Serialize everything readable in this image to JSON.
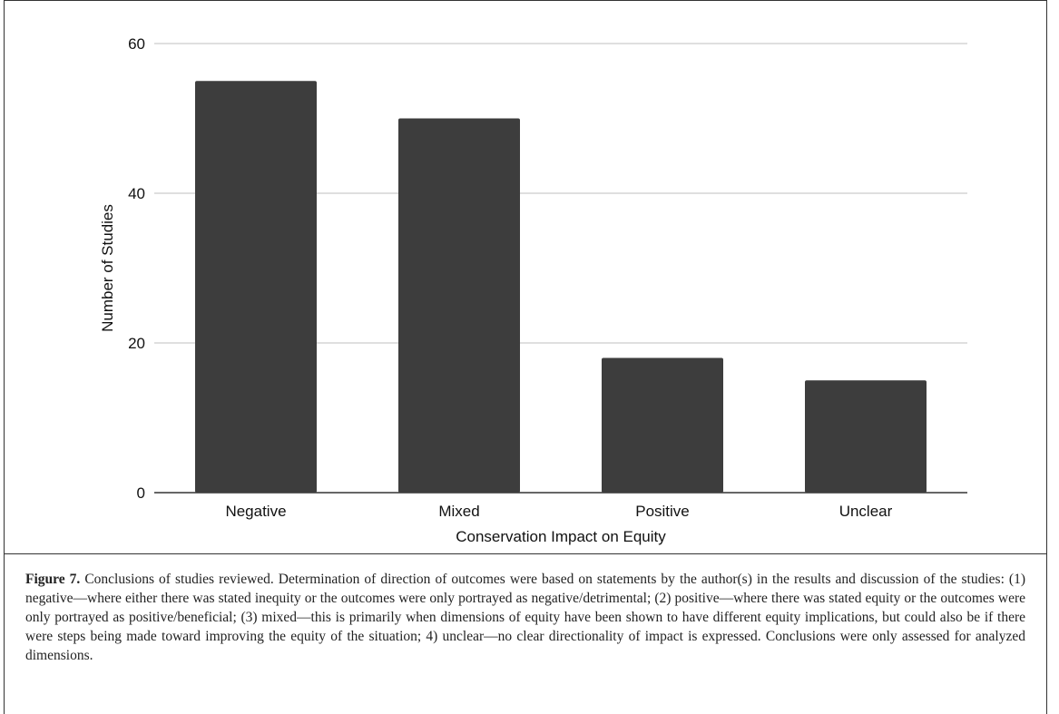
{
  "chart_data": {
    "type": "bar",
    "categories": [
      "Negative",
      "Mixed",
      "Positive",
      "Unclear"
    ],
    "values": [
      55,
      50,
      18,
      15
    ],
    "xlabel": "Conservation Impact on Equity",
    "ylabel": "Number of Studies",
    "ylim": [
      0,
      60
    ],
    "yticks": [
      0,
      20,
      40,
      60
    ],
    "grid": true,
    "bar_color": "#3d3d3d",
    "grid_color": "#cccccc"
  },
  "caption": {
    "label": "Figure 7.",
    "text": "Conclusions of studies reviewed. Determination of direction of outcomes were based on statements by the author(s) in the results and discussion of the studies: (1) negative—where either there was stated inequity or the outcomes were only portrayed as negative/detrimental; (2) positive—where there was stated equity or the outcomes were only portrayed as positive/beneficial; (3) mixed—this is primarily when dimensions of equity have been shown to have different equity implications, but could also be if there were steps being made toward improving the equity of the situation; 4) unclear—no clear directionality of impact is expressed. Conclusions were only assessed for analyzed dimensions."
  }
}
